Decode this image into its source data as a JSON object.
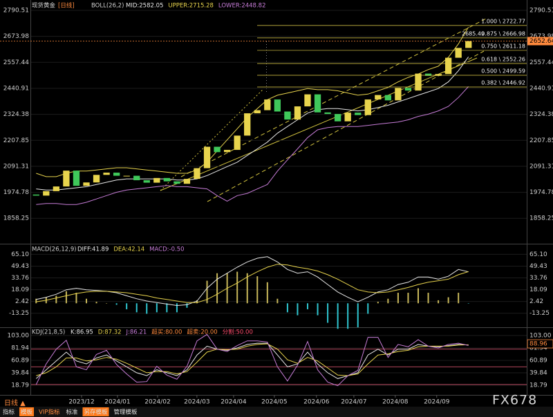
{
  "header": {
    "instrument": "现货黄金",
    "period": "[日线]"
  },
  "chart_data": [
    {
      "type": "candlestick",
      "title": "BOLL(26,2)",
      "categories": [
        null,
        null,
        null,
        null,
        null,
        null,
        null,
        null,
        null,
        null,
        null,
        null,
        null,
        null,
        null,
        null,
        null,
        null,
        null,
        null,
        null,
        null,
        null,
        null,
        null,
        null,
        null,
        null,
        null,
        null,
        null,
        null,
        null,
        null,
        null,
        null,
        null,
        null,
        null,
        null,
        null,
        null,
        null,
        null
      ],
      "open": [
        1965,
        1960,
        1980,
        2001,
        2072,
        2004,
        2019,
        2053,
        2063,
        2049,
        2049,
        2029,
        2018,
        2039,
        2024,
        2013,
        2035,
        2083,
        2179,
        2155,
        2165,
        2229,
        2329,
        2343,
        2391,
        2337,
        2301,
        2360,
        2414,
        2333,
        2326,
        2293,
        2332,
        2321,
        2391,
        2411,
        2387,
        2443,
        2431,
        2507,
        2497,
        2505,
        2578,
        2622
      ],
      "close": [
        1960,
        1980,
        2001,
        2072,
        2004,
        2019,
        2053,
        2063,
        2049,
        2049,
        2029,
        2018,
        2039,
        2024,
        2013,
        2035,
        2083,
        2179,
        2155,
        2165,
        2229,
        2329,
        2343,
        2391,
        2337,
        2301,
        2360,
        2414,
        2333,
        2326,
        2293,
        2332,
        2321,
        2391,
        2411,
        2387,
        2443,
        2431,
        2507,
        2497,
        2505,
        2578,
        2622,
        2652.64
      ],
      "up_color": "#e8d44d",
      "down_color": "#3fc85a",
      "series": [
        {
          "name": "MID:2582.05",
          "color": "#e8e8e8",
          "values": [
            1990,
            1985,
            1985,
            1990,
            1995,
            2000,
            2010,
            2020,
            2030,
            2035,
            2035,
            2035,
            2035,
            2035,
            2030,
            2030,
            2035,
            2050,
            2070,
            2090,
            2110,
            2140,
            2170,
            2200,
            2240,
            2270,
            2300,
            2330,
            2345,
            2350,
            2350,
            2345,
            2340,
            2345,
            2355,
            2365,
            2380,
            2395,
            2410,
            2425,
            2440,
            2470,
            2520,
            2582.05
          ]
        },
        {
          "name": "UPPER:2715.28",
          "color": "#e8d44d",
          "values": [
            2060,
            2045,
            2045,
            2060,
            2070,
            2070,
            2075,
            2080,
            2085,
            2085,
            2080,
            2075,
            2070,
            2065,
            2060,
            2060,
            2075,
            2110,
            2160,
            2210,
            2260,
            2310,
            2350,
            2390,
            2410,
            2420,
            2430,
            2440,
            2435,
            2435,
            2430,
            2420,
            2410,
            2415,
            2430,
            2445,
            2470,
            2490,
            2505,
            2525,
            2540,
            2580,
            2640,
            2715.28
          ]
        },
        {
          "name": "LOWER:2448.82",
          "color": "#c77dd8",
          "values": [
            1920,
            1925,
            1925,
            1920,
            1920,
            1930,
            1945,
            1960,
            1975,
            1985,
            1990,
            1995,
            2000,
            2005,
            2000,
            2000,
            1995,
            1990,
            1960,
            1935,
            1960,
            1970,
            1990,
            2010,
            2070,
            2120,
            2170,
            2220,
            2255,
            2265,
            2270,
            2270,
            2270,
            2275,
            2280,
            2285,
            2290,
            2300,
            2315,
            2325,
            2340,
            2360,
            2400,
            2448.82
          ]
        }
      ],
      "ylim": [
        1753.7,
        2836.9
      ],
      "yticks": [
        2790.51,
        2673.98,
        2557.44,
        2440.91,
        2324.38,
        2207.85,
        2091.31,
        1974.78,
        1858.25
      ],
      "xticks": [
        {
          "value": 4.52,
          "label": "2023/12"
        },
        {
          "value": 8.09,
          "label": "2024/01"
        },
        {
          "value": 12.08,
          "label": "2024/02"
        },
        {
          "value": 15.99,
          "label": "2024/03"
        },
        {
          "value": 19.64,
          "label": "2024/04"
        },
        {
          "value": 23.69,
          "label": "2024/05"
        },
        {
          "value": 27.88,
          "label": "2024/06"
        },
        {
          "value": 31.6,
          "label": "2024/07"
        },
        {
          "value": 35.72,
          "label": "2024/08"
        },
        {
          "value": 39.84,
          "label": "2024/09"
        }
      ],
      "fib_levels": [
        {
          "value": 2722.77,
          "label": "1.000 \\ 2722.77"
        },
        {
          "value": 2666.98,
          "label": "0.875 \\ 2666.98"
        },
        {
          "value": 2611.18,
          "label": "0.750 \\ 2611.18"
        },
        {
          "value": 2552.26,
          "label": "0.618 \\ 2552.26"
        },
        {
          "value": 2499.59,
          "label": "0.500 \\ 2499.59"
        },
        {
          "value": 2446.92,
          "label": "0.382 \\ 2446.92"
        }
      ],
      "fib_color": "#e8d44d",
      "high_annotation": 2685.49,
      "last_price": 2652.64
    },
    {
      "type": "macd",
      "title": "MACD(26,12,9)",
      "histogram": {
        "name": "MACD:-0.50",
        "color": "#c77dd8",
        "pos_color": "#c8b85a",
        "neg_color": "#2fc6d0",
        "values": [
          6,
          8,
          10,
          16,
          14,
          6,
          2,
          0,
          -2,
          -8,
          -12,
          -14,
          -12,
          -12,
          -12,
          -6,
          4,
          30,
          40,
          40,
          42,
          40,
          36,
          28,
          6,
          -12,
          -16,
          -8,
          -16,
          -26,
          -34,
          -34,
          -32,
          -14,
          2,
          6,
          14,
          14,
          20,
          14,
          4,
          8,
          14,
          -0.5
        ]
      },
      "series": [
        {
          "name": "DIFF:41.89",
          "color": "#e8e8e8",
          "values": [
            5,
            8,
            12,
            18,
            20,
            18,
            17,
            16,
            14,
            10,
            6,
            3,
            1,
            -1,
            -3,
            -2,
            3,
            20,
            32,
            40,
            48,
            55,
            60,
            62,
            55,
            45,
            40,
            42,
            35,
            25,
            15,
            8,
            2,
            8,
            15,
            18,
            25,
            28,
            35,
            35,
            32,
            36,
            45,
            41.89
          ]
        },
        {
          "name": "DEA:42.14",
          "color": "#e8d44d",
          "values": [
            2,
            4,
            7,
            10,
            13,
            15,
            16,
            16,
            15,
            14,
            12,
            10,
            7,
            5,
            3,
            1,
            1,
            5,
            12,
            20,
            27,
            35,
            42,
            48,
            52,
            51,
            48,
            46,
            43,
            38,
            32,
            25,
            18,
            15,
            14,
            15,
            18,
            21,
            25,
            28,
            30,
            32,
            38,
            42.14
          ]
        }
      ],
      "ylim": [
        -31,
        71
      ],
      "yticks": [
        {
          "value": 65.1,
          "label": "65.10"
        },
        49.43,
        33.76,
        18.09,
        2.42,
        -13.25
      ]
    },
    {
      "type": "kdj",
      "title": "KDJ(21,8,5)",
      "series": [
        {
          "name": "K:86.95",
          "color": "#e8e8e8",
          "values": [
            30,
            45,
            60,
            75,
            60,
            55,
            65,
            70,
            60,
            50,
            40,
            35,
            45,
            40,
            35,
            45,
            70,
            85,
            80,
            78,
            82,
            88,
            90,
            90,
            70,
            50,
            55,
            75,
            55,
            40,
            30,
            35,
            40,
            70,
            80,
            70,
            80,
            80,
            88,
            85,
            84,
            86,
            88,
            86.95
          ]
        },
        {
          "name": "D:87.32",
          "color": "#e8d44d",
          "values": [
            35,
            40,
            50,
            65,
            65,
            60,
            62,
            66,
            63,
            56,
            48,
            40,
            42,
            42,
            38,
            42,
            58,
            75,
            80,
            79,
            80,
            85,
            88,
            89,
            80,
            62,
            56,
            66,
            60,
            48,
            36,
            35,
            38,
            55,
            70,
            72,
            76,
            78,
            84,
            85,
            85,
            85,
            87,
            87.32
          ]
        },
        {
          "name": "J:86.21",
          "color": "#c77dd8",
          "values": [
            20,
            55,
            80,
            95,
            50,
            45,
            71,
            78,
            54,
            38,
            24,
            25,
            51,
            36,
            29,
            51,
            94,
            105,
            80,
            76,
            86,
            94,
            94,
            92,
            50,
            26,
            53,
            93,
            45,
            24,
            18,
            35,
            44,
            100,
            100,
            66,
            88,
            84,
            96,
            85,
            82,
            88,
            90,
            86.21
          ]
        }
      ],
      "levels": [
        {
          "value": 80,
          "label": "超买:80.00",
          "color": "#ff8a3d"
        },
        {
          "value": 20,
          "label": "超卖:20.00",
          "color": "#ff8a3d"
        },
        {
          "value": 50,
          "label": "分割:50.00",
          "color": "#ff4d6d"
        }
      ],
      "ylim": [
        2.4,
        112.4
      ],
      "yticks": [
        {
          "value": 103,
          "label": "103.00"
        },
        81.94,
        60.89,
        39.84,
        18.79
      ],
      "current_label": 88.96
    }
  ],
  "footer": {
    "period_toggle": "日线 ▲",
    "toolbar": [
      "指标",
      "模板",
      "VIP指标",
      "标准",
      "另存模板",
      "管理模板"
    ],
    "watermark": "FX678"
  }
}
